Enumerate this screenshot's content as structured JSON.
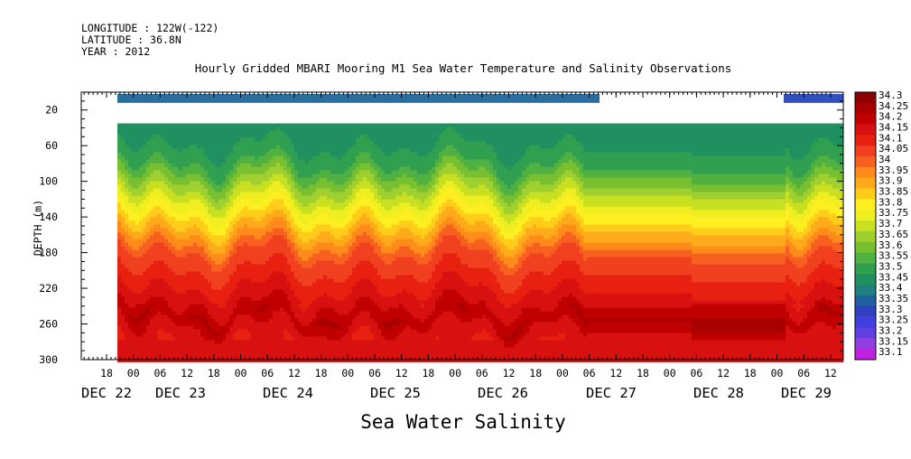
{
  "header": {
    "longitude": "LONGITUDE : 122W(-122)",
    "latitude": "LATITUDE : 36.8N",
    "year": "YEAR : 2012"
  },
  "chart_data": {
    "type": "heatmap",
    "title": "Hourly Gridded MBARI Mooring M1 Sea Water Temperature and Salinity Observations",
    "xlabel": "Sea Water Salinity",
    "ylabel": "DEPTH (m)",
    "ylim": [
      300,
      0
    ],
    "y_ticks": [
      20,
      60,
      100,
      140,
      180,
      220,
      260,
      300
    ],
    "x_range_days": [
      "DEC 22 12:00",
      "DEC 29 14:00"
    ],
    "x_hour_ticks": [
      "18",
      "00",
      "06",
      "12",
      "18",
      "00",
      "06",
      "12",
      "18",
      "00",
      "06",
      "12",
      "18",
      "00",
      "06",
      "12",
      "18",
      "00",
      "06",
      "12",
      "18",
      "00",
      "06",
      "12",
      "18",
      "00",
      "06",
      "12"
    ],
    "x_day_labels": [
      "DEC 22",
      "DEC 23",
      "DEC 24",
      "DEC 25",
      "DEC 26",
      "DEC 27",
      "DEC 28",
      "DEC 29"
    ],
    "colorbar_levels": [
      "34.3",
      "34.25",
      "34.2",
      "34.15",
      "34.1",
      "34.05",
      "34",
      "33.95",
      "33.9",
      "33.85",
      "33.8",
      "33.75",
      "33.7",
      "33.65",
      "33.6",
      "33.55",
      "33.5",
      "33.45",
      "33.4",
      "33.35",
      "33.3",
      "33.25",
      "33.2",
      "33.15",
      "33.1"
    ],
    "colorbar_colors": [
      "#8b0000",
      "#a80000",
      "#c00000",
      "#d81010",
      "#e82010",
      "#f04020",
      "#f86020",
      "#ff8c1a",
      "#ffaa1a",
      "#ffcc1a",
      "#ffee20",
      "#eeee20",
      "#c8e020",
      "#a0d030",
      "#78c030",
      "#50b040",
      "#30a050",
      "#209060",
      "#208080",
      "#2060a0",
      "#3040c0",
      "#4040e0",
      "#6040e0",
      "#9040e0",
      "#c020e0"
    ],
    "surface_band": {
      "depth_m": 10,
      "value": 33.4,
      "spans_days": [
        [
          "DEC 22 12:00",
          "DEC 27 08:00"
        ],
        [
          "DEC 29 02:00",
          "DEC 29 14:00"
        ]
      ]
    },
    "profile_depths_m": [
      35,
      60,
      80,
      100,
      120,
      140,
      160,
      180,
      200,
      220,
      240,
      250,
      260,
      280,
      300
    ],
    "typical_profile": [
      33.45,
      33.5,
      33.55,
      33.65,
      33.75,
      33.85,
      33.95,
      34.05,
      34.1,
      34.15,
      34.2,
      34.25,
      34.2,
      34.15,
      34.15
    ]
  }
}
